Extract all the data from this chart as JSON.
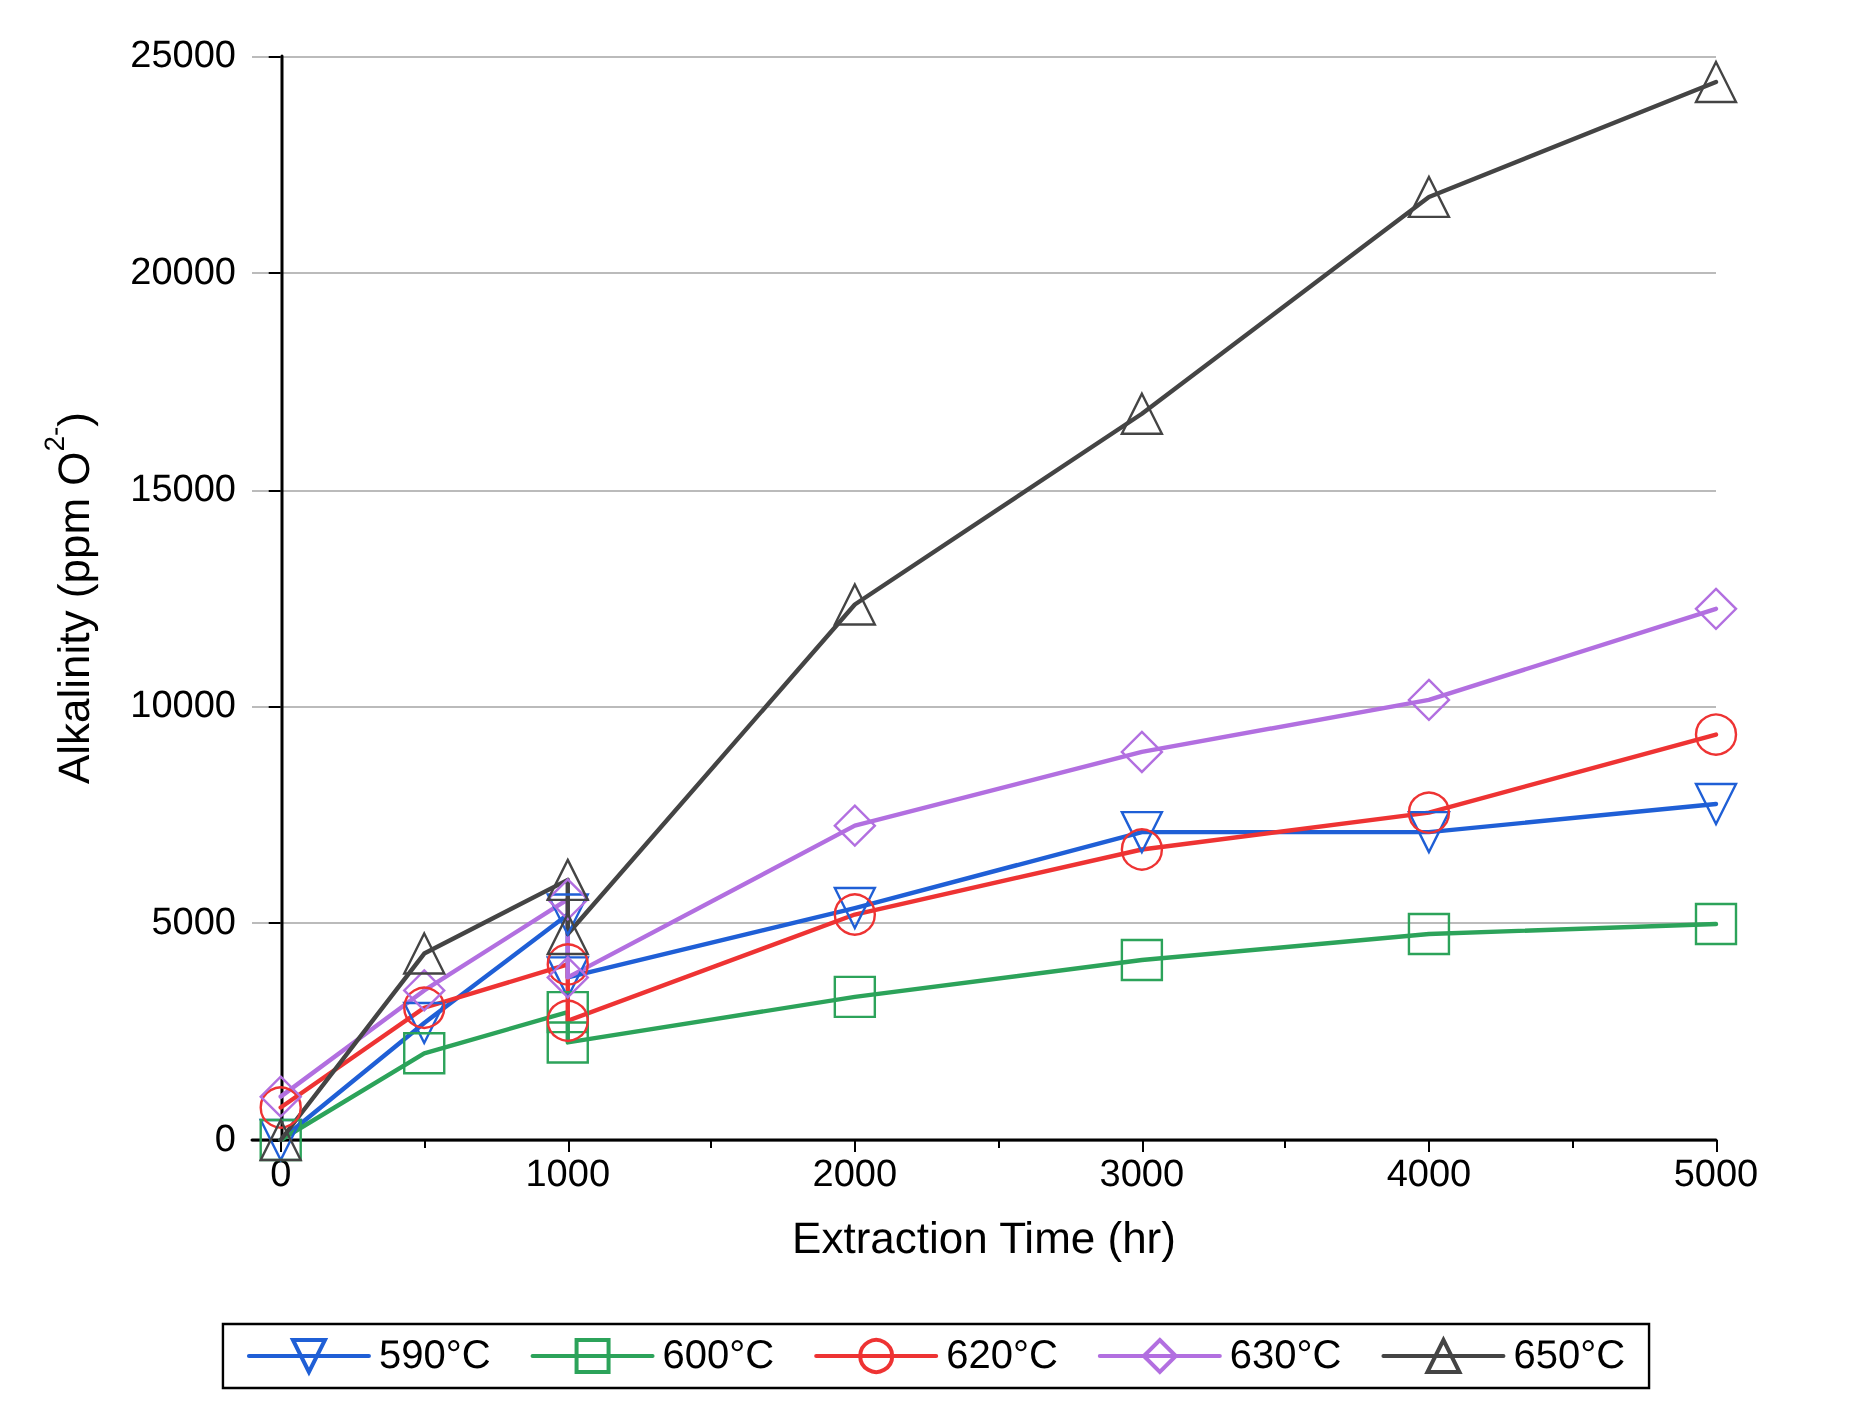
{
  "chart_data": {
    "type": "line",
    "xlabel": "Extraction Time (hr)",
    "ylabel": "Alkalinity (ppm O$^{2-}$)",
    "xlim": [
      -100,
      5000
    ],
    "xticks": [
      0,
      1000,
      2000,
      3000,
      4000,
      5000
    ],
    "ylim": [
      0,
      25000
    ],
    "yticks": [
      0,
      5000,
      10000,
      15000,
      20000,
      25000
    ],
    "grid": "y",
    "legend": "bottom",
    "line_style": "solid",
    "series": [
      {
        "name": "590°C",
        "color": "#1f5fd6",
        "marker": "triangle_down",
        "x": [
          0,
          500,
          1000,
          1000,
          2000,
          3000,
          4000,
          5000
        ],
        "values": [
          0,
          2700,
          5200,
          3750,
          5350,
          7100,
          7100,
          7750
        ]
      },
      {
        "name": "600°C",
        "color": "#2ca35a",
        "marker": "square",
        "x": [
          0,
          500,
          1000,
          1000,
          2000,
          3000,
          4000,
          5000
        ],
        "values": [
          0,
          2000,
          2950,
          2250,
          3300,
          4150,
          4750,
          4980
        ]
      },
      {
        "name": "620°C",
        "color": "#ee3333",
        "marker": "circle",
        "x": [
          0,
          500,
          1000,
          1000,
          2000,
          3000,
          4000,
          5000
        ],
        "values": [
          750,
          3050,
          4050,
          2750,
          5200,
          6700,
          7550,
          9350
        ]
      },
      {
        "name": "630°C",
        "color": "#b26fe0",
        "marker": "diamond",
        "x": [
          0,
          500,
          1000,
          1000,
          2000,
          3000,
          4000,
          5000
        ],
        "values": [
          1000,
          3450,
          5550,
          3750,
          7250,
          8950,
          10150,
          12250
        ]
      },
      {
        "name": "650°C",
        "color": "#444444",
        "marker": "triangle",
        "x": [
          0,
          500,
          1000,
          1000,
          2000,
          3000,
          4000,
          5000
        ],
        "values": [
          0,
          4300,
          6000,
          4750,
          12350,
          16750,
          21750,
          24400
        ]
      }
    ]
  }
}
